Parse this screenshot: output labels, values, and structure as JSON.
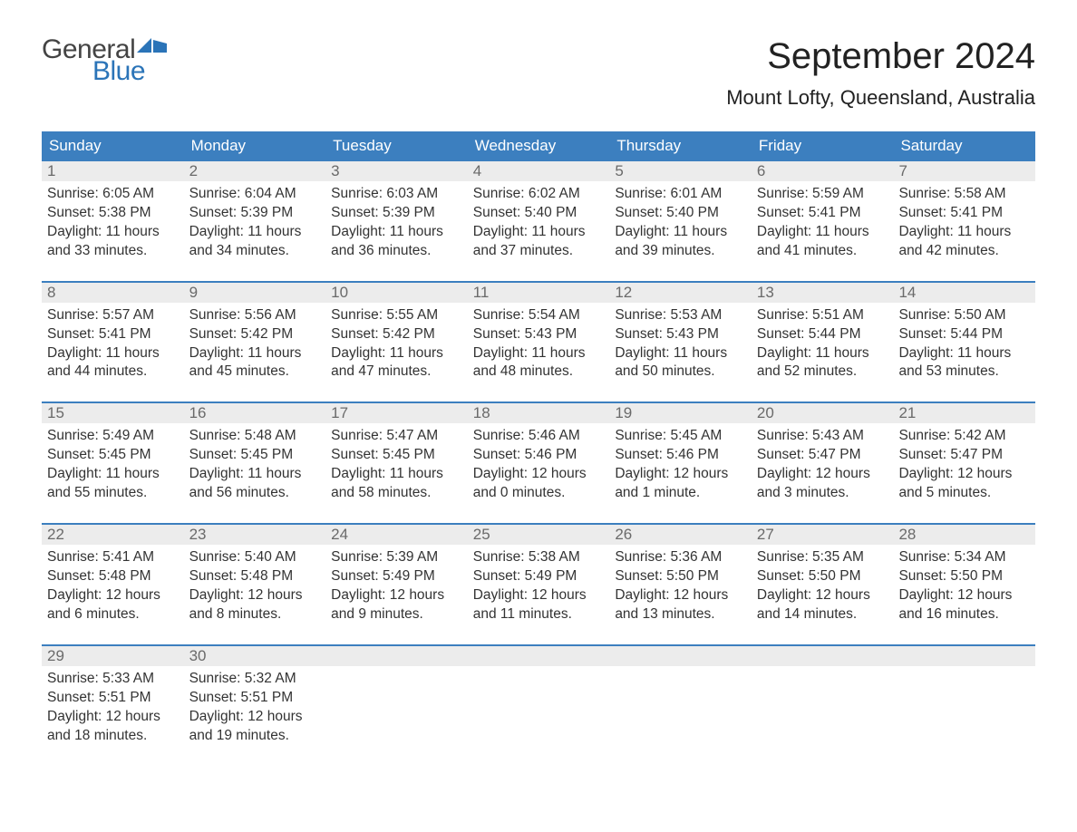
{
  "logo": {
    "text_general": "General",
    "text_blue": "Blue",
    "general_color": "#444444",
    "blue_color": "#2b74b8",
    "flag_color": "#2b74b8"
  },
  "header": {
    "month_title": "September 2024",
    "location": "Mount Lofty, Queensland, Australia"
  },
  "calendar": {
    "type": "table",
    "header_bg": "#3c7fbf",
    "header_fg": "#ffffff",
    "daynum_bg": "#ececec",
    "daynum_fg": "#6a6a6a",
    "week_border_color": "#3c7fbf",
    "body_text_color": "#333333",
    "background_color": "#ffffff",
    "font_family": "Arial",
    "weekday_fontsize": 17,
    "daynum_fontsize": 17,
    "body_fontsize": 15.5,
    "weekdays": [
      "Sunday",
      "Monday",
      "Tuesday",
      "Wednesday",
      "Thursday",
      "Friday",
      "Saturday"
    ],
    "weeks": [
      [
        {
          "day": "1",
          "sunrise": "Sunrise: 6:05 AM",
          "sunset": "Sunset: 5:38 PM",
          "daylight": "Daylight: 11 hours and 33 minutes."
        },
        {
          "day": "2",
          "sunrise": "Sunrise: 6:04 AM",
          "sunset": "Sunset: 5:39 PM",
          "daylight": "Daylight: 11 hours and 34 minutes."
        },
        {
          "day": "3",
          "sunrise": "Sunrise: 6:03 AM",
          "sunset": "Sunset: 5:39 PM",
          "daylight": "Daylight: 11 hours and 36 minutes."
        },
        {
          "day": "4",
          "sunrise": "Sunrise: 6:02 AM",
          "sunset": "Sunset: 5:40 PM",
          "daylight": "Daylight: 11 hours and 37 minutes."
        },
        {
          "day": "5",
          "sunrise": "Sunrise: 6:01 AM",
          "sunset": "Sunset: 5:40 PM",
          "daylight": "Daylight: 11 hours and 39 minutes."
        },
        {
          "day": "6",
          "sunrise": "Sunrise: 5:59 AM",
          "sunset": "Sunset: 5:41 PM",
          "daylight": "Daylight: 11 hours and 41 minutes."
        },
        {
          "day": "7",
          "sunrise": "Sunrise: 5:58 AM",
          "sunset": "Sunset: 5:41 PM",
          "daylight": "Daylight: 11 hours and 42 minutes."
        }
      ],
      [
        {
          "day": "8",
          "sunrise": "Sunrise: 5:57 AM",
          "sunset": "Sunset: 5:41 PM",
          "daylight": "Daylight: 11 hours and 44 minutes."
        },
        {
          "day": "9",
          "sunrise": "Sunrise: 5:56 AM",
          "sunset": "Sunset: 5:42 PM",
          "daylight": "Daylight: 11 hours and 45 minutes."
        },
        {
          "day": "10",
          "sunrise": "Sunrise: 5:55 AM",
          "sunset": "Sunset: 5:42 PM",
          "daylight": "Daylight: 11 hours and 47 minutes."
        },
        {
          "day": "11",
          "sunrise": "Sunrise: 5:54 AM",
          "sunset": "Sunset: 5:43 PM",
          "daylight": "Daylight: 11 hours and 48 minutes."
        },
        {
          "day": "12",
          "sunrise": "Sunrise: 5:53 AM",
          "sunset": "Sunset: 5:43 PM",
          "daylight": "Daylight: 11 hours and 50 minutes."
        },
        {
          "day": "13",
          "sunrise": "Sunrise: 5:51 AM",
          "sunset": "Sunset: 5:44 PM",
          "daylight": "Daylight: 11 hours and 52 minutes."
        },
        {
          "day": "14",
          "sunrise": "Sunrise: 5:50 AM",
          "sunset": "Sunset: 5:44 PM",
          "daylight": "Daylight: 11 hours and 53 minutes."
        }
      ],
      [
        {
          "day": "15",
          "sunrise": "Sunrise: 5:49 AM",
          "sunset": "Sunset: 5:45 PM",
          "daylight": "Daylight: 11 hours and 55 minutes."
        },
        {
          "day": "16",
          "sunrise": "Sunrise: 5:48 AM",
          "sunset": "Sunset: 5:45 PM",
          "daylight": "Daylight: 11 hours and 56 minutes."
        },
        {
          "day": "17",
          "sunrise": "Sunrise: 5:47 AM",
          "sunset": "Sunset: 5:45 PM",
          "daylight": "Daylight: 11 hours and 58 minutes."
        },
        {
          "day": "18",
          "sunrise": "Sunrise: 5:46 AM",
          "sunset": "Sunset: 5:46 PM",
          "daylight": "Daylight: 12 hours and 0 minutes."
        },
        {
          "day": "19",
          "sunrise": "Sunrise: 5:45 AM",
          "sunset": "Sunset: 5:46 PM",
          "daylight": "Daylight: 12 hours and 1 minute."
        },
        {
          "day": "20",
          "sunrise": "Sunrise: 5:43 AM",
          "sunset": "Sunset: 5:47 PM",
          "daylight": "Daylight: 12 hours and 3 minutes."
        },
        {
          "day": "21",
          "sunrise": "Sunrise: 5:42 AM",
          "sunset": "Sunset: 5:47 PM",
          "daylight": "Daylight: 12 hours and 5 minutes."
        }
      ],
      [
        {
          "day": "22",
          "sunrise": "Sunrise: 5:41 AM",
          "sunset": "Sunset: 5:48 PM",
          "daylight": "Daylight: 12 hours and 6 minutes."
        },
        {
          "day": "23",
          "sunrise": "Sunrise: 5:40 AM",
          "sunset": "Sunset: 5:48 PM",
          "daylight": "Daylight: 12 hours and 8 minutes."
        },
        {
          "day": "24",
          "sunrise": "Sunrise: 5:39 AM",
          "sunset": "Sunset: 5:49 PM",
          "daylight": "Daylight: 12 hours and 9 minutes."
        },
        {
          "day": "25",
          "sunrise": "Sunrise: 5:38 AM",
          "sunset": "Sunset: 5:49 PM",
          "daylight": "Daylight: 12 hours and 11 minutes."
        },
        {
          "day": "26",
          "sunrise": "Sunrise: 5:36 AM",
          "sunset": "Sunset: 5:50 PM",
          "daylight": "Daylight: 12 hours and 13 minutes."
        },
        {
          "day": "27",
          "sunrise": "Sunrise: 5:35 AM",
          "sunset": "Sunset: 5:50 PM",
          "daylight": "Daylight: 12 hours and 14 minutes."
        },
        {
          "day": "28",
          "sunrise": "Sunrise: 5:34 AM",
          "sunset": "Sunset: 5:50 PM",
          "daylight": "Daylight: 12 hours and 16 minutes."
        }
      ],
      [
        {
          "day": "29",
          "sunrise": "Sunrise: 5:33 AM",
          "sunset": "Sunset: 5:51 PM",
          "daylight": "Daylight: 12 hours and 18 minutes."
        },
        {
          "day": "30",
          "sunrise": "Sunrise: 5:32 AM",
          "sunset": "Sunset: 5:51 PM",
          "daylight": "Daylight: 12 hours and 19 minutes."
        },
        {
          "day": "",
          "sunrise": "",
          "sunset": "",
          "daylight": "",
          "empty": true
        },
        {
          "day": "",
          "sunrise": "",
          "sunset": "",
          "daylight": "",
          "empty": true
        },
        {
          "day": "",
          "sunrise": "",
          "sunset": "",
          "daylight": "",
          "empty": true
        },
        {
          "day": "",
          "sunrise": "",
          "sunset": "",
          "daylight": "",
          "empty": true
        },
        {
          "day": "",
          "sunrise": "",
          "sunset": "",
          "daylight": "",
          "empty": true
        }
      ]
    ]
  }
}
